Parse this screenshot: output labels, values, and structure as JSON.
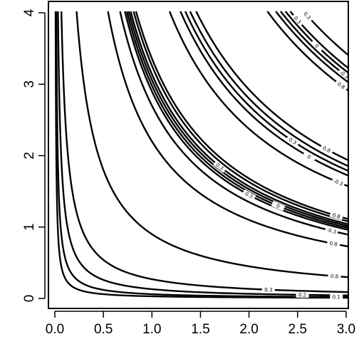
{
  "chart_data": {
    "type": "contour",
    "title": "",
    "xlabel": "",
    "ylabel": "",
    "xlim": [
      0.0,
      3.0
    ],
    "ylim": [
      0.0,
      4.0
    ],
    "x_ticks": [
      {
        "value": 0.0,
        "label": "0.0"
      },
      {
        "value": 0.5,
        "label": "0.5"
      },
      {
        "value": 1.0,
        "label": "1.0"
      },
      {
        "value": 1.5,
        "label": "1.5"
      },
      {
        "value": 2.0,
        "label": "2.0"
      },
      {
        "value": 2.5,
        "label": "2.5"
      },
      {
        "value": 3.0,
        "label": "3.0"
      }
    ],
    "y_ticks": [
      {
        "value": 0,
        "label": "0"
      },
      {
        "value": 1,
        "label": "1"
      },
      {
        "value": 2,
        "label": "2"
      },
      {
        "value": 3,
        "label": "3"
      },
      {
        "value": 4,
        "label": "4"
      }
    ],
    "grid": false,
    "line_color": "#000000",
    "contours": [
      {
        "id": "xy-0.03",
        "xy": 0.03,
        "labels": []
      },
      {
        "id": "xy-0.06",
        "xy": 0.06,
        "labels": [
          {
            "text": "0.1",
            "at_x": 2.9
          }
        ]
      },
      {
        "id": "xy-0.13",
        "xy": 0.13,
        "labels": [
          {
            "text": "0.2",
            "at_x": 2.55
          }
        ]
      },
      {
        "id": "xy-0.27",
        "xy": 0.27,
        "labels": [
          {
            "text": "0.3",
            "at_x": 2.2
          }
        ]
      },
      {
        "id": "xy-0.90",
        "xy": 0.9,
        "labels": [
          {
            "text": "0.8",
            "at_x": 2.88
          }
        ]
      },
      {
        "id": "xy-2.20",
        "xy": 2.2,
        "labels": [
          {
            "text": "0.8",
            "at_x": 2.87
          }
        ]
      },
      {
        "id": "xy-2.70",
        "xy": 2.7,
        "labels": [
          {
            "text": "-0.3",
            "at_x": 2.85
          }
        ]
      },
      {
        "id": "xy-2.90",
        "xy": 2.9,
        "labels": [
          {
            "text": "0.3",
            "at_x": 2.0
          }
        ]
      },
      {
        "id": "xy-2.98",
        "xy": 2.98,
        "labels": [
          {
            "text": "0",
            "at_x": 2.3
          }
        ]
      },
      {
        "id": "xy-3.06",
        "xy": 3.06,
        "labels": []
      },
      {
        "id": "xy-3.14",
        "xy": 3.14,
        "labels": [
          {
            "text": "0.3",
            "at_x": 1.7
          }
        ]
      },
      {
        "id": "xy-3.26",
        "xy": 3.26,
        "labels": []
      },
      {
        "id": "xy-3.36",
        "xy": 3.36,
        "labels": [
          {
            "text": "0.8",
            "at_x": 2.9
          }
        ]
      },
      {
        "id": "xy-4.75",
        "xy": 4.75,
        "labels": [
          {
            "text": "-0.3",
            "at_x": 2.92
          }
        ]
      },
      {
        "id": "xy-5.20",
        "xy": 5.2,
        "labels": [
          {
            "text": "0",
            "at_x": 2.62
          }
        ]
      },
      {
        "id": "xy-5.40",
        "xy": 5.4,
        "labels": [
          {
            "text": "0.3",
            "at_x": 2.45
          }
        ]
      },
      {
        "id": "xy-5.60",
        "xy": 5.6,
        "labels": []
      },
      {
        "id": "xy-5.85",
        "xy": 5.85,
        "labels": [
          {
            "text": "0.8",
            "at_x": 2.8
          }
        ]
      },
      {
        "id": "xy-8.80",
        "xy": 8.8,
        "labels": [
          {
            "text": "0.8",
            "at_x": 2.95
          }
        ]
      },
      {
        "id": "xy-9.15",
        "xy": 9.15,
        "labels": []
      },
      {
        "id": "xy-9.35",
        "xy": 9.35,
        "labels": [
          {
            "text": "-0.3",
            "at_x": 2.98
          }
        ]
      },
      {
        "id": "xy-9.55",
        "xy": 9.55,
        "labels": [
          {
            "text": "0",
            "at_x": 2.7
          }
        ]
      },
      {
        "id": "xy-9.75",
        "xy": 9.75,
        "labels": [
          {
            "text": "0.3",
            "at_x": 2.5
          }
        ]
      },
      {
        "id": "xy-10.3",
        "xy": 10.3,
        "labels": [
          {
            "text": "0.3",
            "at_x": 2.6
          }
        ]
      }
    ]
  }
}
